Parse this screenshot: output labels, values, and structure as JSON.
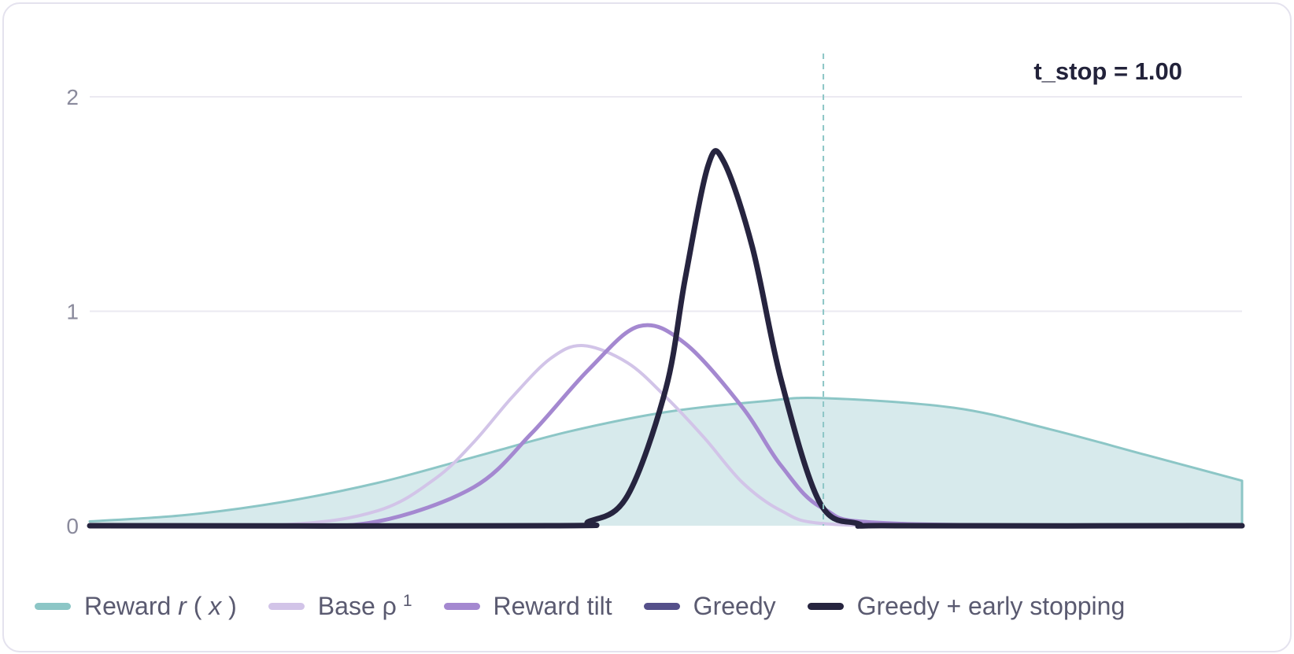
{
  "chart_data": {
    "type": "line",
    "x_range": [
      -3,
      3
    ],
    "ylim": [
      0,
      2
    ],
    "y_ticks": [
      "0",
      "1",
      "2"
    ],
    "grid": true,
    "legend_position": "bottom",
    "annotation": {
      "text": "t_stop = 1.00",
      "x": 0.82
    },
    "series": [
      {
        "key": "reward",
        "color": "#8cc6c6",
        "fill": "#d7eaec",
        "style": "area",
        "points": [
          [
            -3,
            0.02
          ],
          [
            -2.5,
            0.05
          ],
          [
            -2,
            0.11
          ],
          [
            -1.5,
            0.2
          ],
          [
            -1,
            0.32
          ],
          [
            -0.5,
            0.44
          ],
          [
            0,
            0.53
          ],
          [
            0.5,
            0.58
          ],
          [
            0.82,
            0.595
          ],
          [
            1.5,
            0.55
          ],
          [
            2,
            0.45
          ],
          [
            2.5,
            0.33
          ],
          [
            3,
            0.21
          ]
        ]
      },
      {
        "key": "base",
        "color": "#d2c4e8",
        "style": "line",
        "points": [
          [
            -3,
            0
          ],
          [
            -2,
            0.004
          ],
          [
            -1.5,
            0.07
          ],
          [
            -1.2,
            0.22
          ],
          [
            -1,
            0.39
          ],
          [
            -0.8,
            0.6
          ],
          [
            -0.6,
            0.78
          ],
          [
            -0.43,
            0.84
          ],
          [
            -0.2,
            0.76
          ],
          [
            0,
            0.6
          ],
          [
            0.2,
            0.41
          ],
          [
            0.4,
            0.2
          ],
          [
            0.6,
            0.07
          ],
          [
            0.82,
            0.01
          ],
          [
            1.5,
            0
          ],
          [
            3,
            0
          ]
        ]
      },
      {
        "key": "tilt",
        "color": "#a488d0",
        "style": "line",
        "points": [
          [
            -3,
            0
          ],
          [
            -2,
            0
          ],
          [
            -1.5,
            0.02
          ],
          [
            -1,
            0.18
          ],
          [
            -0.7,
            0.43
          ],
          [
            -0.4,
            0.73
          ],
          [
            -0.14,
            0.93
          ],
          [
            0.1,
            0.85
          ],
          [
            0.4,
            0.55
          ],
          [
            0.6,
            0.28
          ],
          [
            0.82,
            0.08
          ],
          [
            1.2,
            0.01
          ],
          [
            3,
            0
          ]
        ]
      },
      {
        "key": "greedy",
        "color": "#55508a",
        "style": "line",
        "points": [
          [
            -3,
            0
          ],
          [
            -0.6,
            0
          ],
          [
            -0.4,
            0.02
          ],
          [
            -0.2,
            0.14
          ],
          [
            0,
            0.64
          ],
          [
            0.1,
            1.15
          ],
          [
            0.22,
            1.68
          ],
          [
            0.3,
            1.7
          ],
          [
            0.45,
            1.3
          ],
          [
            0.6,
            0.68
          ],
          [
            0.8,
            0.11
          ],
          [
            1,
            0.01
          ],
          [
            1.2,
            0
          ],
          [
            3,
            0
          ]
        ]
      },
      {
        "key": "greedy_stop",
        "color": "#26243f",
        "style": "line",
        "points": [
          [
            -3,
            0
          ],
          [
            -0.6,
            0
          ],
          [
            -0.4,
            0.02
          ],
          [
            -0.2,
            0.14
          ],
          [
            0,
            0.64
          ],
          [
            0.1,
            1.15
          ],
          [
            0.22,
            1.68
          ],
          [
            0.3,
            1.7
          ],
          [
            0.45,
            1.3
          ],
          [
            0.6,
            0.68
          ],
          [
            0.8,
            0.11
          ],
          [
            1,
            0.01
          ],
          [
            1.2,
            0
          ],
          [
            3,
            0
          ]
        ]
      }
    ]
  },
  "legend": [
    {
      "key": "reward",
      "label": "Reward ",
      "label_math_a": "r",
      "label_paren_open": "(",
      "label_math_b": "x",
      "label_paren_close": ")",
      "color": "#8cc6c6"
    },
    {
      "key": "base",
      "label": "Base ρ",
      "sup": "1",
      "color": "#d2c4e8"
    },
    {
      "key": "tilt",
      "label": "Reward tilt",
      "color": "#a488d0"
    },
    {
      "key": "greedy",
      "label": "Greedy",
      "color": "#55508a"
    },
    {
      "key": "greedy_stop",
      "label": "Greedy + early stopping",
      "color": "#26243f"
    }
  ]
}
